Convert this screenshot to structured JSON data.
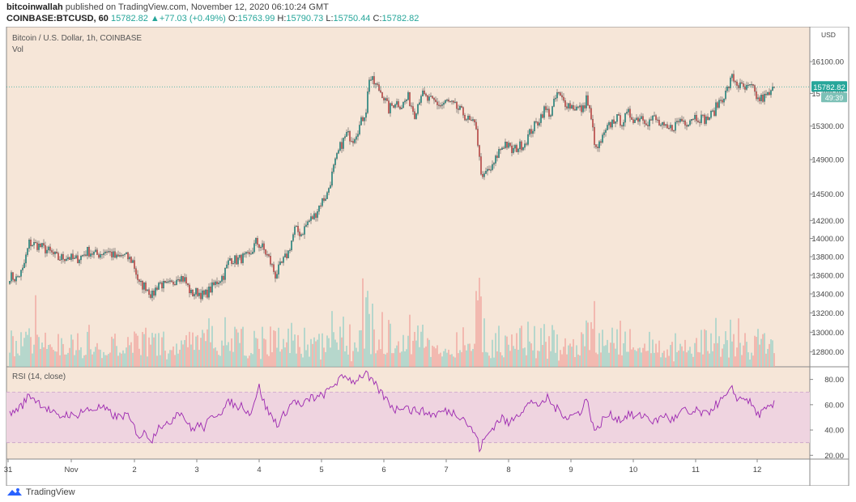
{
  "header": {
    "author": "bitcoinwallah",
    "published": "published on TradingView.com, November 12, 2020 06:10:24 GMT",
    "symbol": "COINBASE:BTCUSD, 60",
    "close": "15782.82",
    "arrow": "▲",
    "change": "+77.03 (+0.49%)",
    "o_label": "O:",
    "o_value": "15763.99",
    "h_label": "H:",
    "h_value": "15790.73",
    "l_label": "L:",
    "l_value": "15750.44",
    "c_label": "C:",
    "c_value": "15782.82"
  },
  "footer": {
    "brand": "TradingView",
    "logo_icon": "tradingview-logo-icon"
  },
  "chart_data": [
    {
      "type": "candlestick",
      "title": "Bitcoin / U.S. Dollar, 1h, COINBASE",
      "volume_label": "Vol",
      "currency_label": "USD",
      "scale": "log",
      "ylim": [
        12650,
        16550
      ],
      "y_ticks": [
        12800,
        13000,
        13200,
        13400,
        13600,
        13800,
        14000,
        14200,
        14500,
        14900,
        15300,
        15700,
        16100
      ],
      "x_ticks": [
        "31",
        "Nov",
        "2",
        "3",
        "4",
        "5",
        "6",
        "7",
        "8",
        "9",
        "10",
        "11",
        "12"
      ],
      "last_price": "15782.82",
      "countdown": "49:39",
      "colors": {
        "up": "#26a69a",
        "down": "#ef5350",
        "background": "#f6e6d8",
        "up_volume": "#9ed1c8",
        "down_volume": "#f0a8a0"
      },
      "anchors": [
        [
          0,
          13590
        ],
        [
          4,
          13560
        ],
        [
          8,
          13650
        ],
        [
          12,
          13950
        ],
        [
          18,
          13920
        ],
        [
          24,
          13860
        ],
        [
          30,
          13780
        ],
        [
          36,
          13800
        ],
        [
          40,
          13760
        ],
        [
          44,
          13800
        ],
        [
          48,
          13860
        ],
        [
          54,
          13820
        ],
        [
          60,
          13870
        ],
        [
          66,
          13780
        ],
        [
          70,
          13820
        ],
        [
          76,
          13750
        ],
        [
          80,
          13500
        ],
        [
          84,
          13480
        ],
        [
          88,
          13380
        ],
        [
          92,
          13520
        ],
        [
          96,
          13480
        ],
        [
          100,
          13500
        ],
        [
          104,
          13600
        ],
        [
          108,
          13550
        ],
        [
          112,
          13400
        ],
        [
          116,
          13420
        ],
        [
          120,
          13380
        ],
        [
          124,
          13450
        ],
        [
          128,
          13530
        ],
        [
          132,
          13600
        ],
        [
          136,
          13780
        ],
        [
          140,
          13760
        ],
        [
          144,
          13790
        ],
        [
          148,
          13800
        ],
        [
          152,
          13960
        ],
        [
          156,
          13900
        ],
        [
          160,
          13780
        ],
        [
          164,
          13600
        ],
        [
          168,
          13720
        ],
        [
          172,
          13850
        ],
        [
          176,
          14100
        ],
        [
          180,
          14050
        ],
        [
          184,
          14180
        ],
        [
          188,
          14250
        ],
        [
          192,
          14400
        ],
        [
          196,
          14500
        ],
        [
          200,
          14800
        ],
        [
          204,
          15050
        ],
        [
          208,
          15200
        ],
        [
          212,
          15150
        ],
        [
          216,
          15300
        ],
        [
          220,
          15500
        ],
        [
          222,
          15900
        ],
        [
          226,
          15800
        ],
        [
          230,
          15700
        ],
        [
          234,
          15500
        ],
        [
          238,
          15600
        ],
        [
          242,
          15550
        ],
        [
          246,
          15650
        ],
        [
          250,
          15450
        ],
        [
          254,
          15700
        ],
        [
          258,
          15620
        ],
        [
          262,
          15600
        ],
        [
          266,
          15550
        ],
        [
          270,
          15600
        ],
        [
          276,
          15520
        ],
        [
          280,
          15450
        ],
        [
          284,
          15350
        ],
        [
          288,
          15300
        ],
        [
          290,
          14900
        ],
        [
          292,
          14650
        ],
        [
          294,
          14750
        ],
        [
          298,
          14800
        ],
        [
          302,
          15000
        ],
        [
          306,
          15100
        ],
        [
          310,
          15000
        ],
        [
          314,
          15050
        ],
        [
          318,
          15100
        ],
        [
          322,
          15250
        ],
        [
          326,
          15350
        ],
        [
          330,
          15500
        ],
        [
          334,
          15450
        ],
        [
          338,
          15700
        ],
        [
          342,
          15600
        ],
        [
          346,
          15550
        ],
        [
          350,
          15520
        ],
        [
          354,
          15500
        ],
        [
          356,
          15650
        ],
        [
          358,
          15480
        ],
        [
          360,
          15250
        ],
        [
          362,
          15000
        ],
        [
          366,
          15150
        ],
        [
          370,
          15300
        ],
        [
          374,
          15400
        ],
        [
          378,
          15350
        ],
        [
          382,
          15450
        ],
        [
          386,
          15380
        ],
        [
          390,
          15420
        ],
        [
          394,
          15350
        ],
        [
          398,
          15400
        ],
        [
          402,
          15300
        ],
        [
          406,
          15250
        ],
        [
          410,
          15300
        ],
        [
          414,
          15380
        ],
        [
          418,
          15350
        ],
        [
          422,
          15420
        ],
        [
          426,
          15400
        ],
        [
          430,
          15380
        ],
        [
          434,
          15450
        ],
        [
          438,
          15600
        ],
        [
          442,
          15700
        ],
        [
          446,
          15900
        ],
        [
          450,
          15800
        ],
        [
          454,
          15750
        ],
        [
          458,
          15780
        ],
        [
          462,
          15620
        ],
        [
          466,
          15650
        ],
        [
          470,
          15700
        ],
        [
          472,
          15782
        ]
      ],
      "volume_spikes": [
        [
          16,
          3.4
        ],
        [
          120,
          1.6
        ],
        [
          156,
          1.9
        ],
        [
          218,
          4.2
        ],
        [
          220,
          3.3
        ],
        [
          224,
          3.0
        ],
        [
          230,
          2.6
        ],
        [
          255,
          2.0
        ],
        [
          288,
          3.6
        ],
        [
          290,
          4.6
        ],
        [
          293,
          2.3
        ],
        [
          356,
          2.2
        ],
        [
          360,
          1.8
        ],
        [
          364,
          1.6
        ],
        [
          450,
          2.3
        ],
        [
          454,
          1.6
        ],
        [
          462,
          1.8
        ]
      ]
    },
    {
      "type": "line",
      "title": "RSI (14, close)",
      "ylim": [
        17,
        90
      ],
      "y_ticks": [
        20,
        40,
        60,
        80
      ],
      "band": [
        30,
        70
      ],
      "line_color": "#9c27b0",
      "band_color": "#efd4e0",
      "anchors": [
        [
          0,
          52
        ],
        [
          8,
          60
        ],
        [
          12,
          68
        ],
        [
          18,
          62
        ],
        [
          24,
          56
        ],
        [
          30,
          50
        ],
        [
          36,
          53
        ],
        [
          40,
          50
        ],
        [
          44,
          55
        ],
        [
          50,
          56
        ],
        [
          56,
          58
        ],
        [
          60,
          55
        ],
        [
          66,
          50
        ],
        [
          72,
          52
        ],
        [
          76,
          44
        ],
        [
          80,
          35
        ],
        [
          84,
          38
        ],
        [
          88,
          32
        ],
        [
          92,
          45
        ],
        [
          96,
          42
        ],
        [
          100,
          48
        ],
        [
          104,
          56
        ],
        [
          108,
          50
        ],
        [
          112,
          40
        ],
        [
          116,
          44
        ],
        [
          120,
          42
        ],
        [
          126,
          52
        ],
        [
          132,
          56
        ],
        [
          136,
          63
        ],
        [
          140,
          58
        ],
        [
          144,
          60
        ],
        [
          148,
          52
        ],
        [
          154,
          74
        ],
        [
          158,
          58
        ],
        [
          162,
          50
        ],
        [
          166,
          44
        ],
        [
          170,
          54
        ],
        [
          176,
          64
        ],
        [
          180,
          58
        ],
        [
          186,
          66
        ],
        [
          190,
          65
        ],
        [
          196,
          70
        ],
        [
          200,
          76
        ],
        [
          204,
          80
        ],
        [
          208,
          83
        ],
        [
          212,
          78
        ],
        [
          216,
          82
        ],
        [
          220,
          85
        ],
        [
          222,
          80
        ],
        [
          226,
          75
        ],
        [
          230,
          68
        ],
        [
          234,
          62
        ],
        [
          238,
          56
        ],
        [
          244,
          60
        ],
        [
          248,
          55
        ],
        [
          252,
          56
        ],
        [
          256,
          54
        ],
        [
          262,
          52
        ],
        [
          268,
          55
        ],
        [
          274,
          54
        ],
        [
          280,
          50
        ],
        [
          284,
          42
        ],
        [
          288,
          36
        ],
        [
          290,
          25
        ],
        [
          292,
          30
        ],
        [
          296,
          38
        ],
        [
          300,
          45
        ],
        [
          304,
          50
        ],
        [
          308,
          44
        ],
        [
          312,
          52
        ],
        [
          316,
          55
        ],
        [
          320,
          60
        ],
        [
          324,
          63
        ],
        [
          328,
          58
        ],
        [
          332,
          66
        ],
        [
          336,
          58
        ],
        [
          340,
          55
        ],
        [
          344,
          50
        ],
        [
          348,
          52
        ],
        [
          352,
          54
        ],
        [
          356,
          65
        ],
        [
          358,
          55
        ],
        [
          360,
          45
        ],
        [
          362,
          38
        ],
        [
          366,
          48
        ],
        [
          370,
          52
        ],
        [
          374,
          50
        ],
        [
          378,
          48
        ],
        [
          382,
          53
        ],
        [
          386,
          50
        ],
        [
          392,
          52
        ],
        [
          398,
          46
        ],
        [
          404,
          52
        ],
        [
          408,
          48
        ],
        [
          412,
          50
        ],
        [
          416,
          56
        ],
        [
          420,
          52
        ],
        [
          424,
          55
        ],
        [
          430,
          52
        ],
        [
          434,
          58
        ],
        [
          438,
          62
        ],
        [
          442,
          66
        ],
        [
          446,
          72
        ],
        [
          450,
          64
        ],
        [
          454,
          66
        ],
        [
          458,
          60
        ],
        [
          462,
          52
        ],
        [
          466,
          55
        ],
        [
          470,
          58
        ],
        [
          472,
          60
        ]
      ]
    }
  ]
}
